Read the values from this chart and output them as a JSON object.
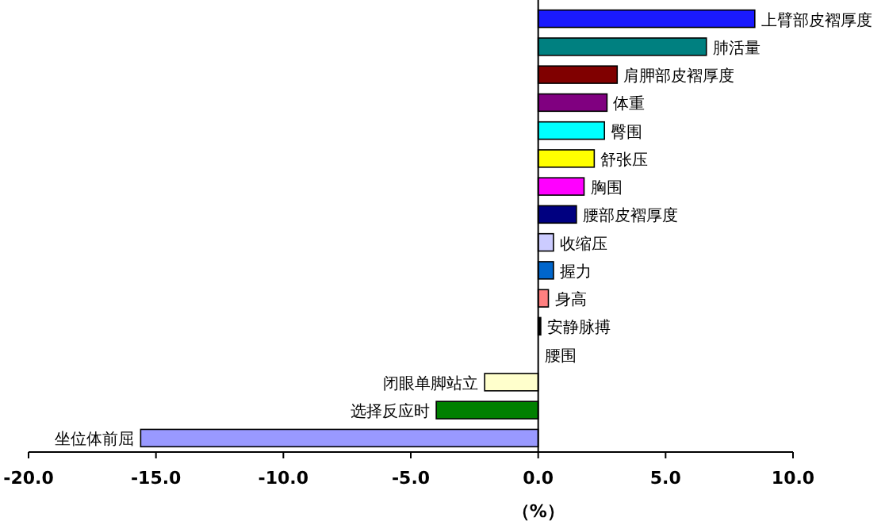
{
  "chart_data": {
    "type": "bar",
    "orientation": "horizontal",
    "xlabel": "（%）",
    "categories": [
      "上臂部皮褶厚度",
      "肺活量",
      "肩胛部皮褶厚度",
      "体重",
      "臀围",
      "舒张压",
      "胸围",
      "腰部皮褶厚度",
      "收缩压",
      "握力",
      "身高",
      "安静脉搏",
      "腰围",
      "闭眼单脚站立",
      "选择反应时",
      "坐位体前屈"
    ],
    "values": [
      8.5,
      6.6,
      3.1,
      2.7,
      2.6,
      2.2,
      1.8,
      1.5,
      0.6,
      0.6,
      0.4,
      0.1,
      0,
      -2.1,
      -4.0,
      -15.6
    ],
    "colors": [
      "#1a1aff",
      "#008080",
      "#800000",
      "#800080",
      "#00ffff",
      "#ffff00",
      "#ff00ff",
      "#000080",
      "#ccccff",
      "#0066cc",
      "#ff8080",
      "#000000",
      "#808080",
      "#ffffcc",
      "#008000",
      "#9999ff"
    ],
    "xlim": [
      -20,
      10
    ],
    "xticks": [
      {
        "value": -20,
        "label": "-20.0"
      },
      {
        "value": -15,
        "label": "-15.0"
      },
      {
        "value": -10,
        "label": "-10.0"
      },
      {
        "value": -5,
        "label": "-5.0"
      },
      {
        "value": 0,
        "label": "0.0"
      },
      {
        "value": 5,
        "label": "5.0"
      },
      {
        "value": 10,
        "label": "10.0"
      }
    ],
    "tick_labels": "x"
  }
}
